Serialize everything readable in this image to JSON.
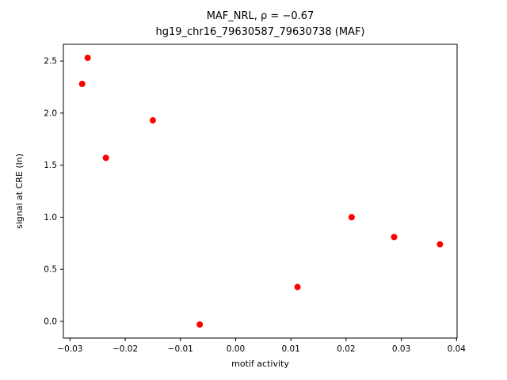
{
  "figure": {
    "title_line1": "MAF_NRL, ρ = −0.67",
    "title_line2": "hg19_chr16_79630587_79630738 (MAF)"
  },
  "chart_data": {
    "type": "scatter",
    "title": "MAF_NRL, ρ = −0.67",
    "subtitle": "hg19_chr16_79630587_79630738 (MAF)",
    "xlabel": "motif activity",
    "ylabel": "signal at CRE (ln)",
    "correlation": -0.67,
    "grid": false,
    "legend": null,
    "xlim": [
      -0.0312,
      0.0401
    ],
    "ylim": [
      -0.16,
      2.66
    ],
    "xticks": [
      -0.03,
      -0.02,
      -0.01,
      0.0,
      0.01,
      0.02,
      0.03,
      0.04
    ],
    "xtick_labels": [
      "−0.03",
      "−0.02",
      "−0.01",
      "0.00",
      "0.01",
      "0.02",
      "0.03",
      "0.04"
    ],
    "yticks": [
      0.0,
      0.5,
      1.0,
      1.5,
      2.0,
      2.5
    ],
    "ytick_labels": [
      "0.0",
      "0.5",
      "1.0",
      "1.5",
      "2.0",
      "2.5"
    ],
    "point_color": "#ff0000",
    "point_radius": 4,
    "points": [
      {
        "x": -0.0278,
        "y": 2.28
      },
      {
        "x": -0.0268,
        "y": 2.53
      },
      {
        "x": -0.0235,
        "y": 1.57
      },
      {
        "x": -0.015,
        "y": 1.93
      },
      {
        "x": -0.0065,
        "y": -0.03
      },
      {
        "x": 0.0112,
        "y": 0.33
      },
      {
        "x": 0.021,
        "y": 1.0
      },
      {
        "x": 0.0287,
        "y": 0.81
      },
      {
        "x": 0.037,
        "y": 0.74
      }
    ]
  }
}
